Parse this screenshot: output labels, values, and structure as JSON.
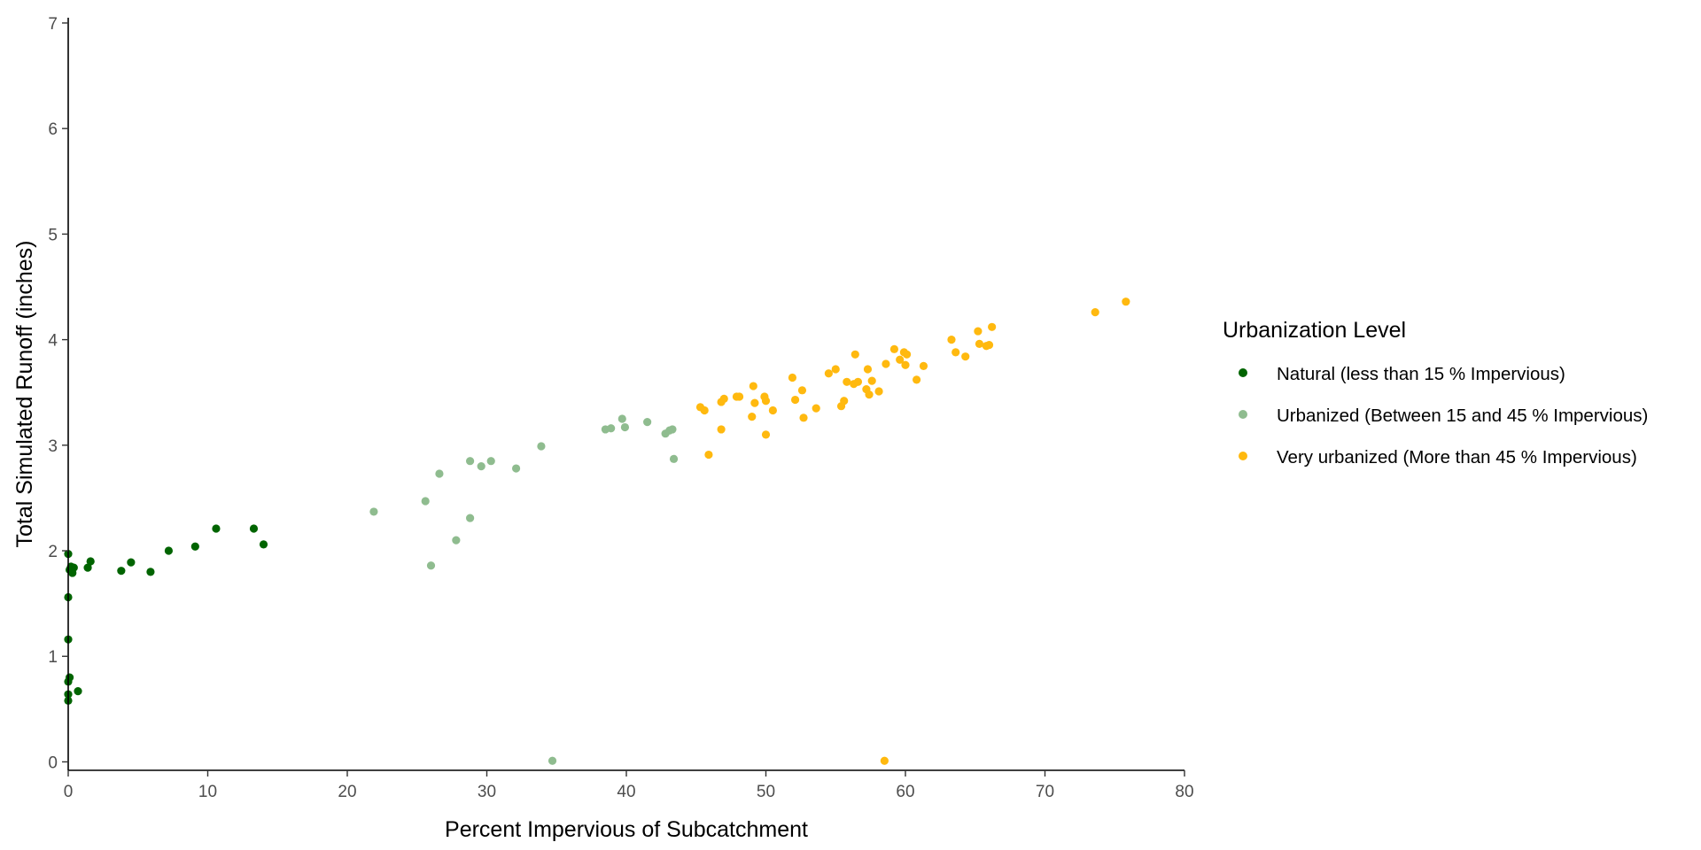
{
  "chart_data": {
    "type": "scatter",
    "title": "",
    "xlabel": "Percent Impervious of Subcatchment",
    "ylabel": "Total Simulated Runoff (inches)",
    "xlim": [
      0,
      80
    ],
    "ylim": [
      0,
      7
    ],
    "x_ticks": [
      0,
      10,
      20,
      30,
      40,
      50,
      60,
      70,
      80
    ],
    "y_ticks": [
      0,
      1,
      2,
      3,
      4,
      5,
      6,
      7
    ],
    "grid": false,
    "legend_position": "right",
    "legend_title": "Urbanization Level",
    "series": [
      {
        "name": "Natural (less than 15 % Impervious)",
        "color": "#006400",
        "points": [
          [
            0,
            1.97
          ],
          [
            0,
            1.56
          ],
          [
            0,
            1.16
          ],
          [
            0.1,
            0.8
          ],
          [
            0,
            0.76
          ],
          [
            0,
            0.64
          ],
          [
            0,
            0.58
          ],
          [
            0.7,
            0.67
          ],
          [
            0.2,
            1.85
          ],
          [
            0.4,
            1.84
          ],
          [
            0.3,
            1.79
          ],
          [
            0.1,
            1.82
          ],
          [
            1.4,
            1.84
          ],
          [
            1.6,
            1.9
          ],
          [
            3.8,
            1.81
          ],
          [
            4.5,
            1.89
          ],
          [
            5.9,
            1.8
          ],
          [
            7.2,
            2.0
          ],
          [
            9.1,
            2.04
          ],
          [
            10.6,
            2.21
          ],
          [
            13.3,
            2.21
          ],
          [
            14.0,
            2.06
          ]
        ]
      },
      {
        "name": "Urbanized (Between 15 and 45 % Impervious)",
        "color": "#8fbc8f",
        "points": [
          [
            21.9,
            2.37
          ],
          [
            25.6,
            2.47
          ],
          [
            26.0,
            1.86
          ],
          [
            26.6,
            2.73
          ],
          [
            27.8,
            2.1
          ],
          [
            28.8,
            2.31
          ],
          [
            28.8,
            2.85
          ],
          [
            29.6,
            2.8
          ],
          [
            30.3,
            2.85
          ],
          [
            32.1,
            2.78
          ],
          [
            33.9,
            2.99
          ],
          [
            34.7,
            0.01
          ],
          [
            38.5,
            3.15
          ],
          [
            38.9,
            3.16
          ],
          [
            39.7,
            3.25
          ],
          [
            39.9,
            3.17
          ],
          [
            41.5,
            3.22
          ],
          [
            42.8,
            3.11
          ],
          [
            43.1,
            3.14
          ],
          [
            43.3,
            3.15
          ],
          [
            43.4,
            2.87
          ]
        ]
      },
      {
        "name": "Very urbanized (More than 45 % Impervious)",
        "color": "#ffb90f",
        "points": [
          [
            45.3,
            3.36
          ],
          [
            45.6,
            3.33
          ],
          [
            45.9,
            2.91
          ],
          [
            46.8,
            3.15
          ],
          [
            46.8,
            3.41
          ],
          [
            47.0,
            3.44
          ],
          [
            47.9,
            3.46
          ],
          [
            48.1,
            3.46
          ],
          [
            49.0,
            3.27
          ],
          [
            49.1,
            3.56
          ],
          [
            49.2,
            3.4
          ],
          [
            49.9,
            3.46
          ],
          [
            50.0,
            3.42
          ],
          [
            50.0,
            3.1
          ],
          [
            50.5,
            3.33
          ],
          [
            51.9,
            3.64
          ],
          [
            52.1,
            3.43
          ],
          [
            52.6,
            3.52
          ],
          [
            52.7,
            3.26
          ],
          [
            53.6,
            3.35
          ],
          [
            54.5,
            3.68
          ],
          [
            55.0,
            3.72
          ],
          [
            55.4,
            3.37
          ],
          [
            55.6,
            3.42
          ],
          [
            55.8,
            3.6
          ],
          [
            56.3,
            3.58
          ],
          [
            56.4,
            3.86
          ],
          [
            56.6,
            3.6
          ],
          [
            57.2,
            3.53
          ],
          [
            57.3,
            3.72
          ],
          [
            57.4,
            3.48
          ],
          [
            57.6,
            3.61
          ],
          [
            58.1,
            3.51
          ],
          [
            58.6,
            3.77
          ],
          [
            58.5,
            0.01
          ],
          [
            59.2,
            3.91
          ],
          [
            59.6,
            3.81
          ],
          [
            59.9,
            3.88
          ],
          [
            60.0,
            3.76
          ],
          [
            60.1,
            3.86
          ],
          [
            60.8,
            3.62
          ],
          [
            61.3,
            3.75
          ],
          [
            63.3,
            4.0
          ],
          [
            63.6,
            3.88
          ],
          [
            64.3,
            3.84
          ],
          [
            65.2,
            4.08
          ],
          [
            65.3,
            3.96
          ],
          [
            65.8,
            3.94
          ],
          [
            66.0,
            3.95
          ],
          [
            66.2,
            4.12
          ],
          [
            73.6,
            4.26
          ],
          [
            75.8,
            4.36
          ]
        ]
      }
    ]
  }
}
